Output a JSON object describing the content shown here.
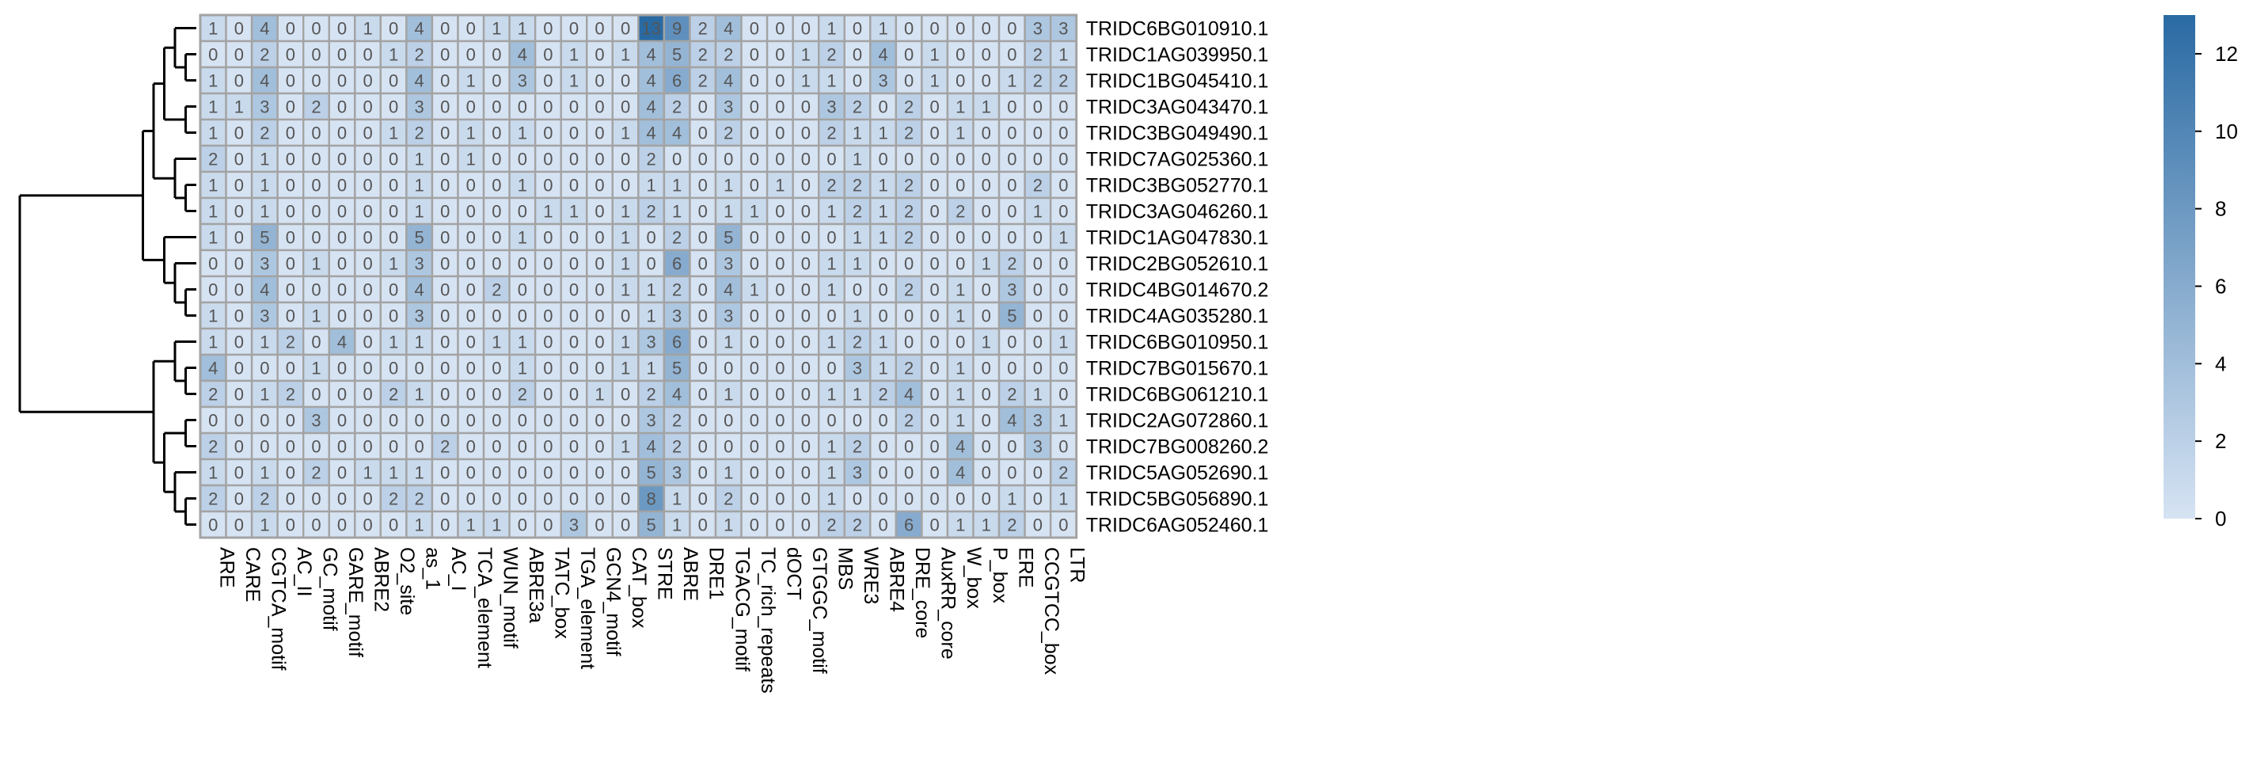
{
  "chart_data": {
    "type": "heatmap",
    "rows": [
      "TRIDC6BG010910.1",
      "TRIDC1AG039950.1",
      "TRIDC1BG045410.1",
      "TRIDC3AG043470.1",
      "TRIDC3BG049490.1",
      "TRIDC7AG025360.1",
      "TRIDC3BG052770.1",
      "TRIDC3AG046260.1",
      "TRIDC1AG047830.1",
      "TRIDC2BG052610.1",
      "TRIDC4BG014670.2",
      "TRIDC4AG035280.1",
      "TRIDC6BG010950.1",
      "TRIDC7BG015670.1",
      "TRIDC6BG061210.1",
      "TRIDC2AG072860.1",
      "TRIDC7BG008260.2",
      "TRIDC5AG052690.1",
      "TRIDC5BG056890.1",
      "TRIDC6AG052460.1"
    ],
    "columns": [
      "ARE",
      "CARE",
      "CGTCA_motif",
      "AC_II",
      "GC_motif",
      "GARE_motif",
      "ABRE2",
      "O2_site",
      "as_1",
      "AC_I",
      "TCA_element",
      "WUN_motif",
      "ABRE3a",
      "TATC_box",
      "TGA_element",
      "GCN4_motif",
      "CAT_box",
      "STRE",
      "ABRE",
      "DRE1",
      "TGACG_motif",
      "TC_rich_repeats",
      "dOCT",
      "GTGGC_motif",
      "MBS",
      "WRE3",
      "ABRE4",
      "DRE_core",
      "AuxRR_core",
      "W_box",
      "P_box",
      "ERE",
      "CCGTCC_box",
      "LTR"
    ],
    "values": [
      [
        1,
        0,
        4,
        0,
        0,
        0,
        1,
        0,
        4,
        0,
        0,
        1,
        1,
        0,
        0,
        0,
        0,
        13,
        9,
        2,
        4,
        0,
        0,
        0,
        1,
        0,
        1,
        0,
        0,
        0,
        0,
        0,
        3,
        3
      ],
      [
        0,
        0,
        2,
        0,
        0,
        0,
        0,
        1,
        2,
        0,
        0,
        0,
        4,
        0,
        1,
        0,
        1,
        4,
        5,
        2,
        2,
        0,
        0,
        1,
        2,
        0,
        4,
        0,
        1,
        0,
        0,
        0,
        2,
        1
      ],
      [
        1,
        0,
        4,
        0,
        0,
        0,
        0,
        0,
        4,
        0,
        1,
        0,
        3,
        0,
        1,
        0,
        0,
        4,
        6,
        2,
        4,
        0,
        0,
        1,
        1,
        0,
        3,
        0,
        1,
        0,
        0,
        1,
        2,
        2
      ],
      [
        1,
        1,
        3,
        0,
        2,
        0,
        0,
        0,
        3,
        0,
        0,
        0,
        0,
        0,
        0,
        0,
        0,
        4,
        2,
        0,
        3,
        0,
        0,
        0,
        3,
        2,
        0,
        2,
        0,
        1,
        1,
        0,
        0,
        0
      ],
      [
        1,
        0,
        2,
        0,
        0,
        0,
        0,
        1,
        2,
        0,
        1,
        0,
        1,
        0,
        0,
        0,
        1,
        4,
        4,
        0,
        2,
        0,
        0,
        0,
        2,
        1,
        1,
        2,
        0,
        1,
        0,
        0,
        0,
        0
      ],
      [
        2,
        0,
        1,
        0,
        0,
        0,
        0,
        0,
        1,
        0,
        1,
        0,
        0,
        0,
        0,
        0,
        0,
        2,
        0,
        0,
        0,
        0,
        0,
        0,
        0,
        1,
        0,
        0,
        0,
        0,
        0,
        0,
        0,
        0
      ],
      [
        1,
        0,
        1,
        0,
        0,
        0,
        0,
        0,
        1,
        0,
        0,
        0,
        1,
        0,
        0,
        0,
        0,
        1,
        1,
        0,
        1,
        0,
        1,
        0,
        2,
        2,
        1,
        2,
        0,
        0,
        0,
        0,
        2,
        0
      ],
      [
        1,
        0,
        1,
        0,
        0,
        0,
        0,
        0,
        1,
        0,
        0,
        0,
        0,
        1,
        1,
        0,
        1,
        2,
        1,
        0,
        1,
        1,
        0,
        0,
        1,
        2,
        1,
        2,
        0,
        2,
        0,
        0,
        1,
        0
      ],
      [
        1,
        0,
        5,
        0,
        0,
        0,
        0,
        0,
        5,
        0,
        0,
        0,
        1,
        0,
        0,
        0,
        1,
        0,
        2,
        0,
        5,
        0,
        0,
        0,
        0,
        1,
        1,
        2,
        0,
        0,
        0,
        0,
        0,
        1
      ],
      [
        0,
        0,
        3,
        0,
        1,
        0,
        0,
        1,
        3,
        0,
        0,
        0,
        0,
        0,
        0,
        0,
        1,
        0,
        6,
        0,
        3,
        0,
        0,
        0,
        1,
        1,
        0,
        0,
        0,
        0,
        1,
        2,
        0,
        0
      ],
      [
        0,
        0,
        4,
        0,
        0,
        0,
        0,
        0,
        4,
        0,
        0,
        2,
        0,
        0,
        0,
        0,
        1,
        1,
        2,
        0,
        4,
        1,
        0,
        0,
        1,
        0,
        0,
        2,
        0,
        1,
        0,
        3,
        0,
        0
      ],
      [
        1,
        0,
        3,
        0,
        1,
        0,
        0,
        0,
        3,
        0,
        0,
        0,
        0,
        0,
        0,
        0,
        0,
        1,
        3,
        0,
        3,
        0,
        0,
        0,
        0,
        1,
        0,
        0,
        0,
        1,
        0,
        5,
        0,
        0
      ],
      [
        1,
        0,
        1,
        2,
        0,
        4,
        0,
        1,
        1,
        0,
        0,
        1,
        1,
        0,
        0,
        0,
        1,
        3,
        6,
        0,
        1,
        0,
        0,
        0,
        1,
        2,
        1,
        0,
        0,
        0,
        1,
        0,
        0,
        1
      ],
      [
        4,
        0,
        0,
        0,
        1,
        0,
        0,
        0,
        0,
        0,
        0,
        0,
        1,
        0,
        0,
        0,
        1,
        1,
        5,
        0,
        0,
        0,
        0,
        0,
        0,
        3,
        1,
        2,
        0,
        1,
        0,
        0,
        0,
        0
      ],
      [
        2,
        0,
        1,
        2,
        0,
        0,
        0,
        2,
        1,
        0,
        0,
        0,
        2,
        0,
        0,
        1,
        0,
        2,
        4,
        0,
        1,
        0,
        0,
        0,
        1,
        1,
        2,
        4,
        0,
        1,
        0,
        2,
        1,
        0
      ],
      [
        0,
        0,
        0,
        0,
        3,
        0,
        0,
        0,
        0,
        0,
        0,
        0,
        0,
        0,
        0,
        0,
        0,
        3,
        2,
        0,
        0,
        0,
        0,
        0,
        0,
        0,
        0,
        2,
        0,
        1,
        0,
        4,
        3,
        1
      ],
      [
        2,
        0,
        0,
        0,
        0,
        0,
        0,
        0,
        0,
        2,
        0,
        0,
        0,
        0,
        0,
        0,
        1,
        4,
        2,
        0,
        0,
        0,
        0,
        0,
        1,
        2,
        0,
        0,
        0,
        4,
        0,
        0,
        3,
        0
      ],
      [
        1,
        0,
        1,
        0,
        2,
        0,
        1,
        1,
        1,
        0,
        0,
        0,
        0,
        0,
        0,
        0,
        0,
        5,
        3,
        0,
        1,
        0,
        0,
        0,
        1,
        3,
        0,
        0,
        0,
        4,
        0,
        0,
        0,
        2
      ],
      [
        2,
        0,
        2,
        0,
        0,
        0,
        0,
        2,
        2,
        0,
        0,
        0,
        0,
        0,
        0,
        0,
        0,
        8,
        1,
        0,
        2,
        0,
        0,
        0,
        1,
        0,
        0,
        0,
        0,
        0,
        0,
        1,
        0,
        1
      ],
      [
        0,
        0,
        1,
        0,
        0,
        0,
        0,
        0,
        1,
        0,
        1,
        1,
        0,
        0,
        3,
        0,
        0,
        5,
        1,
        0,
        1,
        0,
        0,
        0,
        2,
        2,
        0,
        6,
        0,
        1,
        1,
        2,
        0,
        0
      ]
    ],
    "colorbar": {
      "min": 0,
      "max": 13,
      "ticks": [
        0,
        2,
        4,
        6,
        8,
        10,
        12
      ]
    },
    "colors": {
      "low": "#d6e3f3",
      "high": "#2a6aa3",
      "cell_border": "#a3a3a3",
      "text": "#555555"
    },
    "row_dendrogram": true,
    "cell_labels": true,
    "legend_position": "right"
  }
}
